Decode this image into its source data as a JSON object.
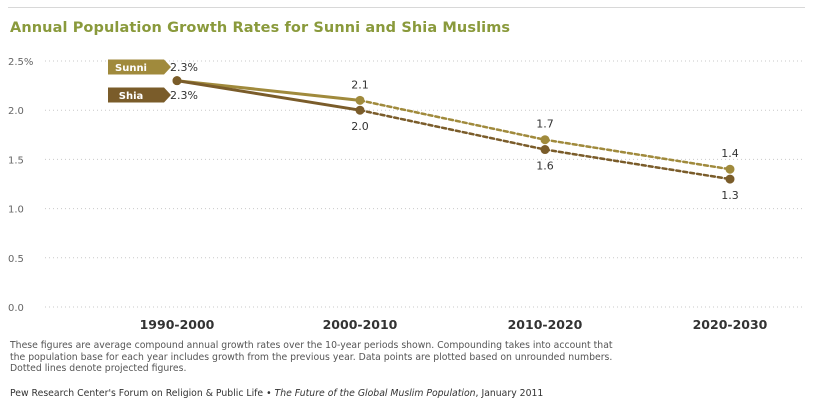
{
  "chart_data": {
    "type": "line",
    "title": "Annual Population Growth Rates for Sunni and Shia Muslims",
    "categories": [
      "1990-2000",
      "2000-2010",
      "2010-2020",
      "2020-2030"
    ],
    "ylim": [
      0,
      2.5
    ],
    "yticks": [
      "0.0",
      "0.5",
      "1.0",
      "1.5",
      "2.0",
      "2.5%"
    ],
    "ytick_values": [
      0,
      0.5,
      1.0,
      1.5,
      2.0,
      2.5
    ],
    "grid": true,
    "projected_from_index": 1,
    "series": [
      {
        "name": "Sunni",
        "values": [
          2.3,
          2.1,
          1.7,
          1.4
        ],
        "labels": [
          "2.3%",
          "2.1",
          "1.7",
          "1.4"
        ],
        "color": "#a08a3c",
        "label_pos": "above"
      },
      {
        "name": "Shia",
        "values": [
          2.3,
          2.0,
          1.6,
          1.3
        ],
        "labels": [
          "2.3%",
          "2.0",
          "1.6",
          "1.3"
        ],
        "color": "#7a5c2a",
        "label_pos": "below"
      }
    ]
  },
  "notes": {
    "line1": "These figures are average compound annual growth rates over the 10-year periods shown. Compounding takes into account that",
    "line2": "the population base for each year includes growth from the previous year. Data points are plotted based on unrounded numbers.",
    "line3": "Dotted lines denote projected figures."
  },
  "source": {
    "org": "Pew Research Center's Forum on Religion & Public Life • ",
    "publication": "The Future of the Global Muslim Population",
    "date": ", January 2011"
  }
}
